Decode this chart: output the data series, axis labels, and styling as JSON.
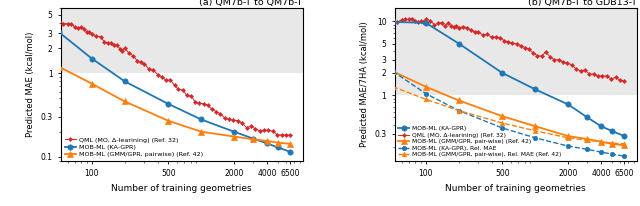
{
  "title_a": "(a) QM7b-T to QM7b-T",
  "title_b": "(b) QM7b-T to GDB13-T",
  "xlabel": "Number of training geometries",
  "ylabel_a": "Predicted MAE (kcal/mol)",
  "ylabel_b": "Predicted MAE/7HA (kcal/mol)",
  "bg_gray": "#e8e8e8",
  "bg_white": "#ffffff",
  "a_qml_x": [
    50,
    55,
    60,
    65,
    70,
    75,
    80,
    85,
    90,
    95,
    100,
    110,
    120,
    130,
    140,
    150,
    160,
    170,
    180,
    190,
    200,
    220,
    240,
    260,
    280,
    300,
    330,
    360,
    400,
    440,
    480,
    520,
    570,
    620,
    680,
    740,
    810,
    880,
    960,
    1050,
    1150,
    1250,
    1370,
    1500,
    1640,
    1800,
    1970,
    2160,
    2370,
    2600,
    2850,
    3130,
    3430,
    3760,
    4120,
    4520,
    4960,
    5440,
    5970,
    6500
  ],
  "a_qml_y": [
    4.1,
    3.95,
    3.82,
    3.7,
    3.58,
    3.47,
    3.36,
    3.26,
    3.17,
    3.08,
    3.0,
    2.84,
    2.7,
    2.57,
    2.45,
    2.34,
    2.24,
    2.14,
    2.05,
    1.97,
    1.89,
    1.74,
    1.61,
    1.49,
    1.39,
    1.3,
    1.19,
    1.09,
    0.99,
    0.91,
    0.84,
    0.78,
    0.72,
    0.67,
    0.61,
    0.57,
    0.53,
    0.49,
    0.46,
    0.43,
    0.4,
    0.37,
    0.35,
    0.33,
    0.31,
    0.29,
    0.28,
    0.26,
    0.25,
    0.24,
    0.23,
    0.22,
    0.21,
    0.205,
    0.2,
    0.195,
    0.19,
    0.185,
    0.18,
    0.175
  ],
  "a_mob_x": [
    50,
    100,
    200,
    500,
    1000,
    2000,
    3000,
    4000,
    5000,
    6500
  ],
  "a_mob_y": [
    3.1,
    1.5,
    0.8,
    0.43,
    0.28,
    0.2,
    0.165,
    0.145,
    0.13,
    0.115
  ],
  "a_gmm_x": [
    50,
    100,
    200,
    500,
    1000,
    2000,
    3000,
    4000,
    5000,
    6500
  ],
  "a_gmm_y": [
    1.2,
    0.75,
    0.46,
    0.27,
    0.2,
    0.175,
    0.162,
    0.155,
    0.148,
    0.143
  ],
  "b_qml_x": [
    50,
    55,
    60,
    65,
    70,
    75,
    80,
    85,
    90,
    95,
    100,
    110,
    120,
    130,
    140,
    150,
    160,
    170,
    180,
    190,
    200,
    220,
    240,
    260,
    280,
    300,
    330,
    360,
    400,
    440,
    480,
    520,
    570,
    620,
    680,
    740,
    810,
    880,
    960,
    1050,
    1150,
    1250,
    1370,
    1500,
    1640,
    1800,
    1970,
    2160,
    2370,
    2600,
    2850,
    3130,
    3430,
    3760,
    4120,
    4520,
    4960,
    5440,
    5970,
    6500
  ],
  "b_qml_y": [
    10.5,
    10.4,
    10.3,
    10.2,
    10.15,
    10.1,
    10.05,
    10.0,
    9.95,
    9.9,
    9.85,
    9.75,
    9.6,
    9.5,
    9.35,
    9.2,
    9.05,
    8.9,
    8.75,
    8.6,
    8.45,
    8.15,
    7.9,
    7.65,
    7.4,
    7.2,
    6.9,
    6.6,
    6.3,
    6.0,
    5.75,
    5.5,
    5.25,
    5.0,
    4.75,
    4.5,
    4.3,
    4.1,
    3.9,
    3.7,
    3.55,
    3.4,
    3.25,
    3.1,
    2.95,
    2.8,
    2.65,
    2.5,
    2.35,
    2.2,
    2.1,
    2.0,
    1.92,
    1.85,
    1.8,
    1.75,
    1.7,
    1.67,
    1.63,
    1.6
  ],
  "b_mob_x": [
    50,
    100,
    200,
    500,
    1000,
    2000,
    3000,
    4000,
    5000,
    6500
  ],
  "b_mob_y": [
    9.8,
    9.5,
    5.0,
    2.0,
    1.2,
    0.75,
    0.5,
    0.38,
    0.33,
    0.28
  ],
  "b_gmm_x": [
    50,
    100,
    200,
    500,
    1000,
    2000,
    3000,
    4000,
    5000,
    6500
  ],
  "b_gmm_y": [
    2.1,
    1.3,
    0.85,
    0.52,
    0.38,
    0.28,
    0.255,
    0.235,
    0.22,
    0.21
  ],
  "b_mob_rel_x": [
    50,
    100,
    200,
    500,
    1000,
    2000,
    3000,
    4000,
    5000,
    6500
  ],
  "b_mob_rel_y": [
    2.1,
    1.05,
    0.62,
    0.36,
    0.265,
    0.205,
    0.185,
    0.17,
    0.16,
    0.15
  ],
  "b_gmm_rel_x": [
    50,
    100,
    200,
    500,
    1000,
    2000,
    3000,
    4000,
    5000,
    6500
  ],
  "b_gmm_rel_y": [
    1.3,
    0.88,
    0.62,
    0.42,
    0.33,
    0.265,
    0.245,
    0.235,
    0.225,
    0.22
  ],
  "color_red": "#d62728",
  "color_blue": "#1f77b4",
  "color_orange": "#ff7f0e",
  "legend_a": [
    "QML (MO, Δ-learining) (Ref. 32)",
    "MOB-ML (KA-GPR)",
    "MOB-ML (GMM/GPR, pairwise) (Ref. 42)"
  ],
  "legend_b_order": [
    "MOB-ML (KA-GPR)",
    "QML (MO, Δ-learining) (Ref. 32)",
    "MOB-ML (GMM/GPR, pair-wise) (Ref. 42)",
    "MOB-ML (KA-GPR), Rel. MAE",
    "MOB-ML (GMM/GPR, pair-wise), Rel. MAE (Ref. 42)"
  ]
}
